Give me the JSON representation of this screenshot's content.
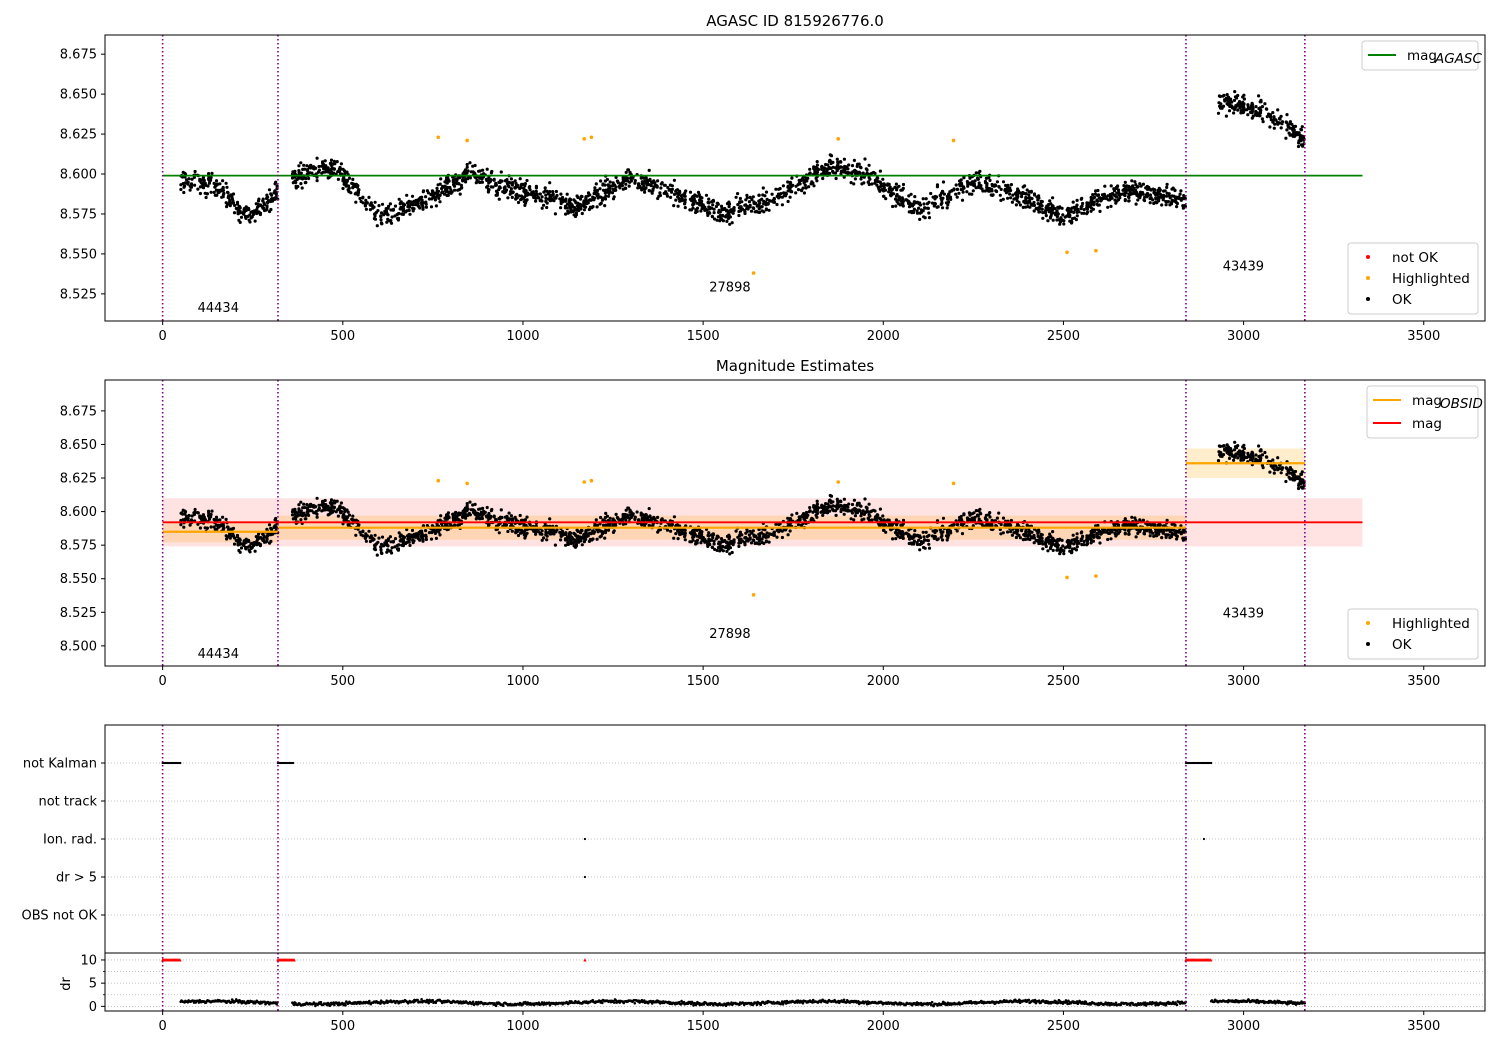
{
  "chart_data": [
    {
      "type": "scatter",
      "title": "AGASC ID 815926776.0",
      "xlim": [
        -160,
        3670
      ],
      "ylim": [
        8.508,
        8.687
      ],
      "x_ticks": [
        0,
        500,
        1000,
        1500,
        2000,
        2500,
        3000,
        3500
      ],
      "y_ticks": [
        8.525,
        8.55,
        8.575,
        8.6,
        8.625,
        8.65,
        8.675
      ],
      "obsid_boundaries": [
        0,
        320,
        2840,
        3170
      ],
      "obsid_labels": [
        {
          "text": "44434",
          "x": 160,
          "y": 8.516
        },
        {
          "text": "27898",
          "x": 1580,
          "y": 8.529
        },
        {
          "text": "43439",
          "x": 3005,
          "y": 8.542
        }
      ],
      "lines": [
        {
          "name": "mag",
          "subscript": "AGASC",
          "color": "#008000",
          "y": 8.599,
          "x": [
            0,
            3330
          ]
        }
      ],
      "legend_lines_position": "upper-right",
      "legend_points_position": "lower-right",
      "point_series": [
        {
          "name": "not OK",
          "color": "#ff0000"
        },
        {
          "name": "Highlighted",
          "color": "#ffa500"
        },
        {
          "name": "OK",
          "color": "#000000"
        }
      ],
      "trend_segments": [
        {
          "x": [
            50,
            150,
            230,
            320
          ],
          "y": [
            8.596,
            8.592,
            8.574,
            8.588
          ]
        },
        {
          "x": [
            360,
            480,
            600,
            750,
            850,
            950,
            1150,
            1300,
            1450,
            1550,
            1700,
            1850,
            1950,
            2100,
            2250,
            2400,
            2500,
            2600,
            2700,
            2840
          ],
          "y": [
            8.598,
            8.604,
            8.573,
            8.585,
            8.6,
            8.592,
            8.58,
            8.598,
            8.585,
            8.575,
            8.585,
            8.605,
            8.6,
            8.577,
            8.596,
            8.585,
            8.573,
            8.585,
            8.59,
            8.583
          ]
        },
        {
          "x": [
            2930,
            3050,
            3170
          ],
          "y": [
            8.645,
            8.64,
            8.622
          ]
        }
      ],
      "highlighted_points": [
        {
          "x": 765,
          "y": 8.623
        },
        {
          "x": 845,
          "y": 8.621
        },
        {
          "x": 1170,
          "y": 8.622
        },
        {
          "x": 1190,
          "y": 8.623
        },
        {
          "x": 1640,
          "y": 8.538
        },
        {
          "x": 1875,
          "y": 8.622
        },
        {
          "x": 2195,
          "y": 8.621
        },
        {
          "x": 2510,
          "y": 8.551
        },
        {
          "x": 2590,
          "y": 8.552
        }
      ]
    },
    {
      "type": "scatter",
      "title": "Magnitude Estimates",
      "xlim": [
        -160,
        3670
      ],
      "ylim": [
        8.485,
        8.698
      ],
      "x_ticks": [
        0,
        500,
        1000,
        1500,
        2000,
        2500,
        3000,
        3500
      ],
      "y_ticks": [
        8.5,
        8.525,
        8.55,
        8.575,
        8.6,
        8.625,
        8.65,
        8.675
      ],
      "obsid_boundaries": [
        0,
        320,
        2840,
        3170
      ],
      "obsid_labels": [
        {
          "text": "44434",
          "x": 160,
          "y": 8.494
        },
        {
          "text": "27898",
          "x": 1580,
          "y": 8.509
        },
        {
          "text": "43439",
          "x": 3005,
          "y": 8.524
        }
      ],
      "lines": [
        {
          "name": "mag",
          "subscript": "OBSID",
          "color": "#ffa500",
          "segments": [
            {
              "x": [
                0,
                320
              ],
              "y": 8.585
            },
            {
              "x": [
                320,
                2840
              ],
              "y": 8.588
            },
            {
              "x": [
                2840,
                3170
              ],
              "y": 8.636
            }
          ]
        },
        {
          "name": "mag",
          "subscript": "",
          "color": "#ff0000",
          "y": 8.592,
          "x": [
            0,
            3330
          ]
        }
      ],
      "bands": [
        {
          "color": "#ff0000",
          "opacity": 0.11,
          "x": [
            0,
            3330
          ],
          "y": [
            8.574,
            8.61
          ]
        },
        {
          "color": "#ffa500",
          "opacity": 0.2,
          "x": [
            0,
            320
          ],
          "y": [
            8.577,
            8.593
          ]
        },
        {
          "color": "#ffa500",
          "opacity": 0.2,
          "x": [
            320,
            2840
          ],
          "y": [
            8.579,
            8.597
          ]
        },
        {
          "color": "#ffa500",
          "opacity": 0.2,
          "x": [
            2840,
            3170
          ],
          "y": [
            8.625,
            8.647
          ]
        }
      ],
      "legend_lines_position": "upper-right",
      "legend_points_position": "lower-right",
      "point_series": [
        {
          "name": "Highlighted",
          "color": "#ffa500"
        },
        {
          "name": "OK",
          "color": "#000000"
        }
      ]
    },
    {
      "type": "scatter",
      "title": "",
      "xlim": [
        -160,
        3670
      ],
      "x_ticks": [
        0,
        500,
        1000,
        1500,
        2000,
        2500,
        3000,
        3500
      ],
      "obsid_boundaries": [
        0,
        320,
        2840,
        3170
      ],
      "flag_rows": [
        {
          "label": "not Kalman",
          "ranges": [
            [
              0,
              50
            ],
            [
              320,
              365
            ],
            [
              2840,
              2910
            ]
          ],
          "points": []
        },
        {
          "label": "not track",
          "ranges": [],
          "points": []
        },
        {
          "label": "Ion. rad.",
          "ranges": [],
          "points": [
            1172,
            2890
          ]
        },
        {
          "label": "dr > 5",
          "ranges": [],
          "points": [
            1172
          ]
        },
        {
          "label": "OBS not OK",
          "ranges": [],
          "points": []
        }
      ],
      "dr_axis": {
        "ylabel": "dr",
        "ylim": [
          -1,
          11.5
        ],
        "y_ticks": [
          0,
          5,
          10
        ],
        "clipped_value": 10,
        "clipped_ranges": [
          [
            0,
            50
          ],
          [
            320,
            365
          ],
          [
            2840,
            2910
          ]
        ],
        "clipped_points": [
          1172
        ],
        "typical_value": 0.8
      }
    }
  ]
}
